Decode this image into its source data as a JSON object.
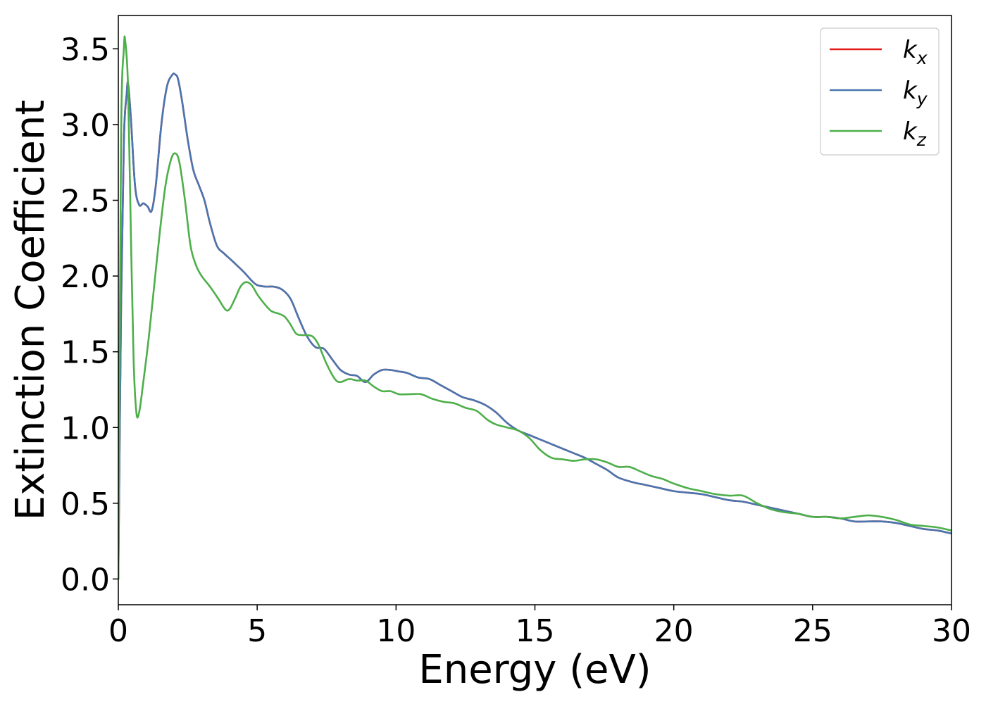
{
  "chart_data": {
    "type": "line",
    "title": "",
    "xlabel": "Energy (eV)",
    "ylabel": "Extinction Coefficient",
    "xlim": [
      0,
      30
    ],
    "ylim": [
      -0.17,
      3.72
    ],
    "xticks": [
      0,
      5,
      10,
      15,
      20,
      25,
      30
    ],
    "xtick_labels": [
      "0",
      "5",
      "10",
      "15",
      "20",
      "25",
      "30"
    ],
    "yticks": [
      0.0,
      0.5,
      1.0,
      1.5,
      2.0,
      2.5,
      3.0,
      3.5
    ],
    "ytick_labels": [
      "0.0",
      "0.5",
      "1.0",
      "1.5",
      "2.0",
      "2.5",
      "3.0",
      "3.5"
    ],
    "grid": false,
    "legend_position": "top-right",
    "series": [
      {
        "name": "k",
        "subscript": "x",
        "color": "#e41a1c",
        "x": [
          0,
          0.1,
          0.2,
          0.3,
          0.35,
          0.45,
          0.6,
          0.75,
          0.9,
          1.05,
          1.2,
          1.35,
          1.55,
          1.75,
          1.95,
          2.05,
          2.15,
          2.3,
          2.5,
          2.7,
          2.9,
          3.1,
          3.3,
          3.55,
          3.8,
          4.1,
          4.5,
          4.8,
          5.0,
          5.3,
          5.6,
          5.9,
          6.2,
          6.5,
          6.8,
          7.1,
          7.4,
          7.7,
          8.0,
          8.3,
          8.6,
          8.9,
          9.2,
          9.5,
          9.8,
          10.1,
          10.4,
          10.8,
          11.2,
          11.6,
          12.0,
          12.4,
          12.8,
          13.2,
          13.6,
          14.0,
          14.4,
          14.8,
          15.2,
          15.6,
          16.0,
          16.4,
          16.8,
          17.2,
          17.6,
          18.0,
          18.5,
          19.0,
          19.5,
          20.0,
          20.5,
          21.0,
          21.5,
          22.0,
          22.5,
          23.0,
          23.5,
          24.0,
          24.5,
          25.0,
          25.5,
          26.0,
          26.5,
          27.0,
          27.5,
          28.0,
          28.5,
          29.0,
          29.5,
          30.0
        ],
        "y": [
          0.0,
          1.8,
          2.9,
          3.2,
          3.27,
          3.05,
          2.6,
          2.47,
          2.48,
          2.46,
          2.43,
          2.6,
          3.0,
          3.25,
          3.33,
          3.33,
          3.3,
          3.15,
          2.9,
          2.7,
          2.6,
          2.5,
          2.35,
          2.2,
          2.15,
          2.1,
          2.03,
          1.97,
          1.94,
          1.93,
          1.93,
          1.91,
          1.85,
          1.72,
          1.6,
          1.53,
          1.52,
          1.45,
          1.38,
          1.35,
          1.34,
          1.3,
          1.35,
          1.38,
          1.38,
          1.37,
          1.36,
          1.33,
          1.32,
          1.28,
          1.24,
          1.2,
          1.18,
          1.15,
          1.1,
          1.03,
          0.98,
          0.95,
          0.92,
          0.89,
          0.86,
          0.83,
          0.8,
          0.76,
          0.72,
          0.67,
          0.64,
          0.62,
          0.6,
          0.58,
          0.57,
          0.56,
          0.54,
          0.52,
          0.51,
          0.49,
          0.47,
          0.45,
          0.43,
          0.41,
          0.41,
          0.4,
          0.38,
          0.38,
          0.38,
          0.37,
          0.35,
          0.33,
          0.32,
          0.3
        ]
      },
      {
        "name": "k",
        "subscript": "y",
        "color": "#4a76b0",
        "x": [
          0,
          0.1,
          0.2,
          0.3,
          0.35,
          0.45,
          0.6,
          0.75,
          0.9,
          1.05,
          1.2,
          1.35,
          1.55,
          1.75,
          1.95,
          2.05,
          2.15,
          2.3,
          2.5,
          2.7,
          2.9,
          3.1,
          3.3,
          3.55,
          3.8,
          4.1,
          4.5,
          4.8,
          5.0,
          5.3,
          5.6,
          5.9,
          6.2,
          6.5,
          6.8,
          7.1,
          7.4,
          7.7,
          8.0,
          8.3,
          8.6,
          8.9,
          9.2,
          9.5,
          9.8,
          10.1,
          10.4,
          10.8,
          11.2,
          11.6,
          12.0,
          12.4,
          12.8,
          13.2,
          13.6,
          14.0,
          14.4,
          14.8,
          15.2,
          15.6,
          16.0,
          16.4,
          16.8,
          17.2,
          17.6,
          18.0,
          18.5,
          19.0,
          19.5,
          20.0,
          20.5,
          21.0,
          21.5,
          22.0,
          22.5,
          23.0,
          23.5,
          24.0,
          24.5,
          25.0,
          25.5,
          26.0,
          26.5,
          27.0,
          27.5,
          28.0,
          28.5,
          29.0,
          29.5,
          30.0
        ],
        "y": [
          0.0,
          1.8,
          2.9,
          3.2,
          3.27,
          3.05,
          2.6,
          2.47,
          2.48,
          2.46,
          2.43,
          2.6,
          3.0,
          3.25,
          3.33,
          3.33,
          3.3,
          3.15,
          2.9,
          2.7,
          2.6,
          2.5,
          2.35,
          2.2,
          2.15,
          2.1,
          2.03,
          1.97,
          1.94,
          1.93,
          1.93,
          1.91,
          1.85,
          1.72,
          1.6,
          1.53,
          1.52,
          1.45,
          1.38,
          1.35,
          1.34,
          1.3,
          1.35,
          1.38,
          1.38,
          1.37,
          1.36,
          1.33,
          1.32,
          1.28,
          1.24,
          1.2,
          1.18,
          1.15,
          1.1,
          1.03,
          0.98,
          0.95,
          0.92,
          0.89,
          0.86,
          0.83,
          0.8,
          0.76,
          0.72,
          0.67,
          0.64,
          0.62,
          0.6,
          0.58,
          0.57,
          0.56,
          0.54,
          0.52,
          0.51,
          0.49,
          0.47,
          0.45,
          0.43,
          0.41,
          0.41,
          0.4,
          0.38,
          0.38,
          0.38,
          0.37,
          0.35,
          0.33,
          0.32,
          0.3
        ]
      },
      {
        "name": "k",
        "subscript": "z",
        "color": "#4daf4a",
        "x": [
          0,
          0.1,
          0.2,
          0.25,
          0.35,
          0.45,
          0.55,
          0.65,
          0.75,
          0.9,
          1.1,
          1.3,
          1.5,
          1.7,
          1.9,
          2.05,
          2.2,
          2.4,
          2.6,
          2.8,
          3.0,
          3.3,
          3.6,
          3.85,
          4.0,
          4.2,
          4.4,
          4.6,
          4.8,
          5.0,
          5.2,
          5.5,
          5.8,
          6.0,
          6.2,
          6.4,
          6.6,
          6.8,
          7.0,
          7.2,
          7.5,
          7.8,
          8.0,
          8.3,
          8.6,
          8.9,
          9.2,
          9.5,
          9.8,
          10.1,
          10.5,
          10.9,
          11.3,
          11.7,
          12.1,
          12.5,
          12.9,
          13.3,
          13.6,
          14.0,
          14.4,
          14.8,
          15.2,
          15.6,
          16.0,
          16.4,
          16.8,
          17.2,
          17.6,
          18.0,
          18.4,
          18.8,
          19.2,
          19.6,
          20.0,
          20.5,
          21.0,
          21.5,
          22.0,
          22.5,
          23.0,
          23.5,
          24.0,
          24.5,
          25.0,
          25.5,
          26.0,
          26.5,
          27.0,
          27.5,
          28.0,
          28.5,
          29.0,
          29.5,
          30.0
        ],
        "y": [
          0.0,
          2.9,
          3.5,
          3.55,
          3.25,
          2.3,
          1.45,
          1.1,
          1.1,
          1.3,
          1.6,
          1.95,
          2.3,
          2.6,
          2.77,
          2.81,
          2.75,
          2.5,
          2.2,
          2.07,
          2.0,
          1.93,
          1.85,
          1.78,
          1.78,
          1.85,
          1.93,
          1.96,
          1.94,
          1.88,
          1.83,
          1.77,
          1.75,
          1.73,
          1.68,
          1.62,
          1.61,
          1.61,
          1.6,
          1.55,
          1.42,
          1.32,
          1.3,
          1.32,
          1.31,
          1.31,
          1.27,
          1.24,
          1.24,
          1.22,
          1.22,
          1.22,
          1.19,
          1.17,
          1.16,
          1.13,
          1.11,
          1.05,
          1.02,
          1.0,
          0.98,
          0.93,
          0.85,
          0.8,
          0.79,
          0.78,
          0.79,
          0.79,
          0.77,
          0.74,
          0.74,
          0.71,
          0.68,
          0.66,
          0.63,
          0.6,
          0.58,
          0.56,
          0.55,
          0.55,
          0.5,
          0.46,
          0.44,
          0.43,
          0.41,
          0.41,
          0.4,
          0.41,
          0.42,
          0.41,
          0.39,
          0.36,
          0.35,
          0.34,
          0.32
        ]
      }
    ]
  }
}
